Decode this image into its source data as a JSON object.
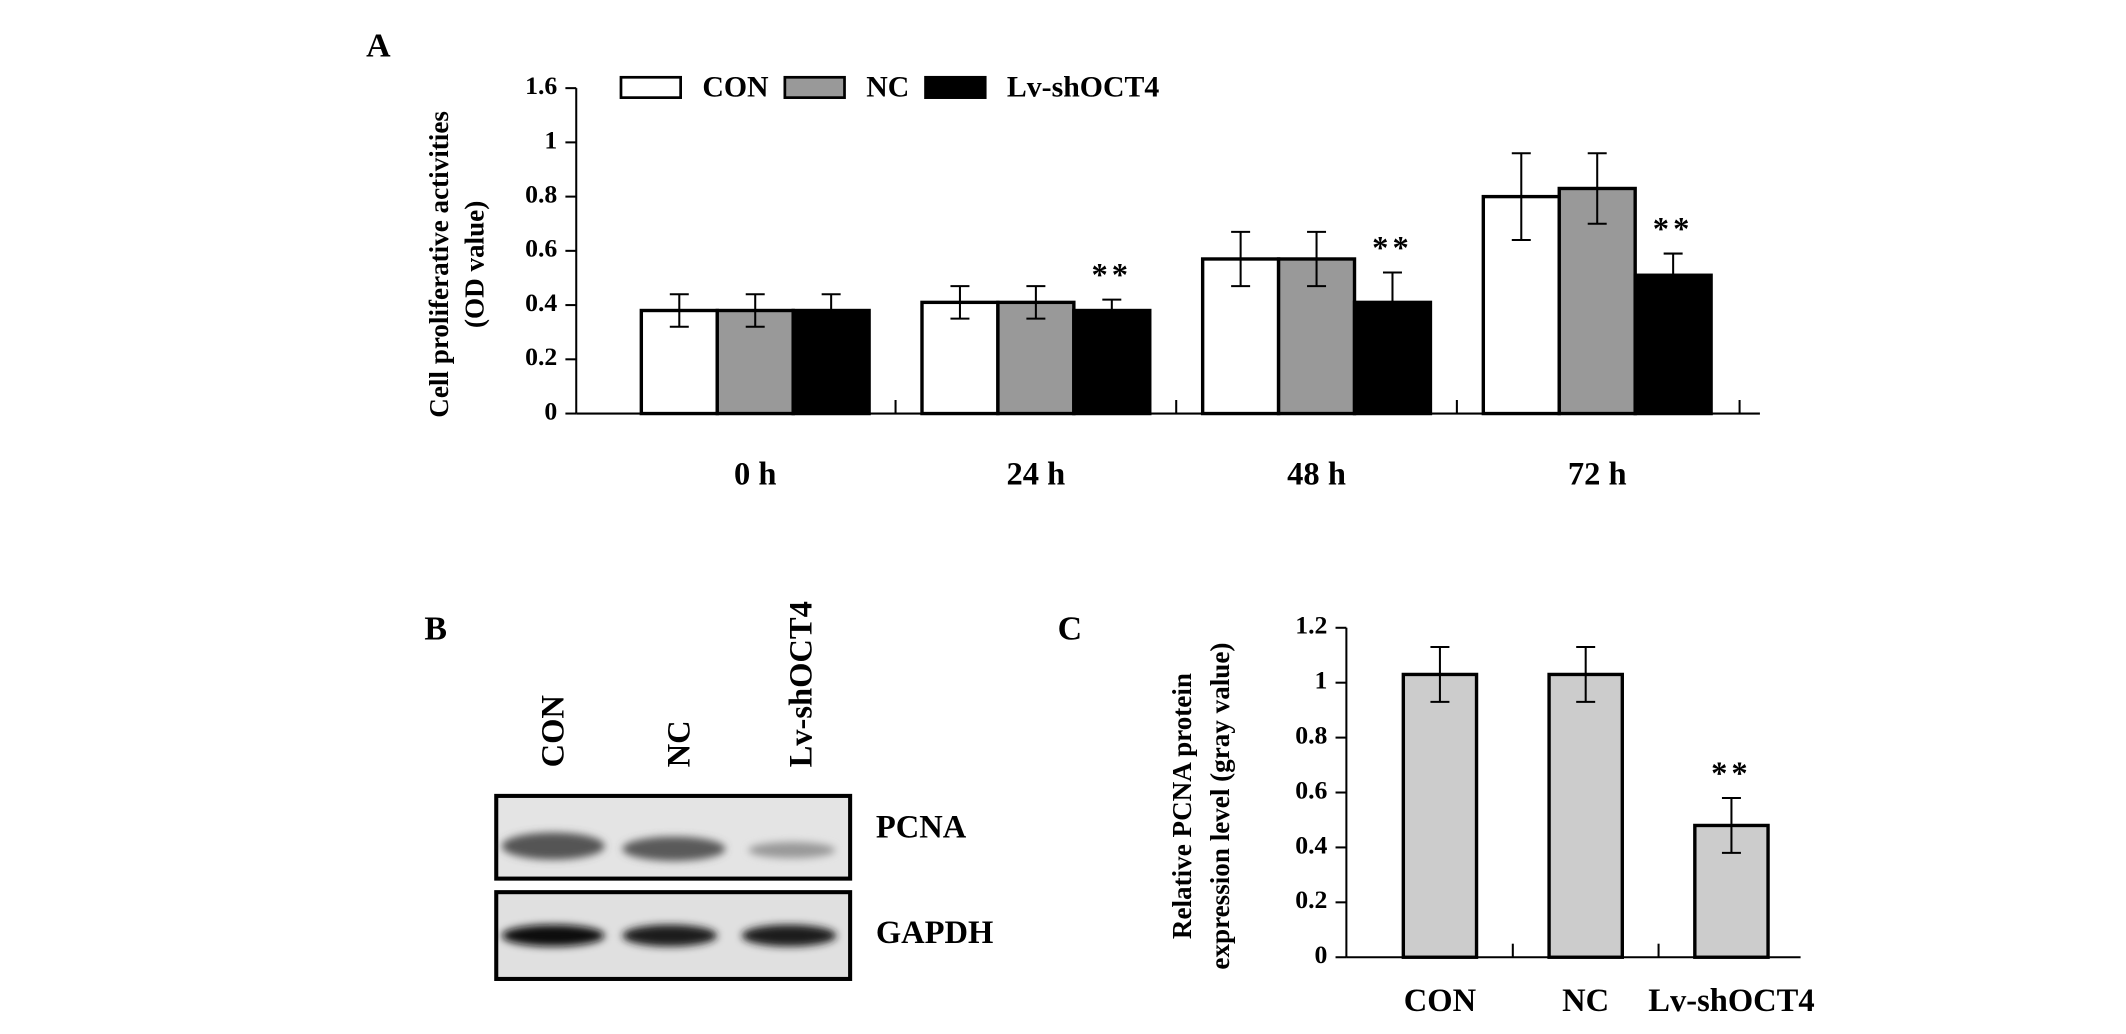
{
  "chart_data": [
    {
      "type": "bar",
      "panel": "A",
      "y_label": [
        "Cell proliferative activities",
        "(OD value)"
      ],
      "categories": [
        "0 h",
        "24 h",
        "48 h",
        "72 h"
      ],
      "series": [
        {
          "name": "CON",
          "color": "#ffffff",
          "values": [
            0.38,
            0.41,
            0.57,
            0.8
          ],
          "errors": [
            0.06,
            0.06,
            0.1,
            0.16
          ]
        },
        {
          "name": "NC",
          "color": "#999999",
          "values": [
            0.38,
            0.41,
            0.57,
            0.83
          ],
          "errors": [
            0.06,
            0.06,
            0.1,
            0.13
          ]
        },
        {
          "name": "Lv-shOCT4",
          "color": "#000000",
          "values": [
            0.38,
            0.38,
            0.41,
            0.51
          ],
          "errors": [
            0.06,
            0.04,
            0.11,
            0.08
          ]
        }
      ],
      "annotations": [
        {
          "text": "**",
          "series": 2,
          "index": 1
        },
        {
          "text": "**",
          "series": 2,
          "index": 2
        },
        {
          "text": "**",
          "series": 2,
          "index": 3
        }
      ],
      "ylim": [
        0,
        1.6
      ],
      "yticks": [
        0,
        0.2,
        0.4,
        0.6,
        0.8,
        1.0,
        1.6
      ],
      "axis_break": true,
      "legend": "top"
    },
    {
      "type": "bar",
      "panel": "C",
      "y_label": [
        "Relative PCNA protein",
        "expression level (gray value)"
      ],
      "categories": [
        "CON",
        "NC",
        "Lv-shOCT4"
      ],
      "values": [
        1.03,
        1.03,
        0.48
      ],
      "errors": [
        0.1,
        0.1,
        0.1
      ],
      "color": "#cccccc",
      "annotations": [
        {
          "text": "**",
          "index": 2
        }
      ],
      "ylim": [
        0,
        1.2
      ],
      "yticks": [
        0,
        0.2,
        0.4,
        0.6,
        0.8,
        1.0,
        1.2
      ]
    }
  ],
  "blot": {
    "panel": "B",
    "lanes": [
      "CON",
      "NC",
      "Lv-shOCT4"
    ],
    "bands": [
      "PCNA",
      "GAPDH"
    ]
  }
}
